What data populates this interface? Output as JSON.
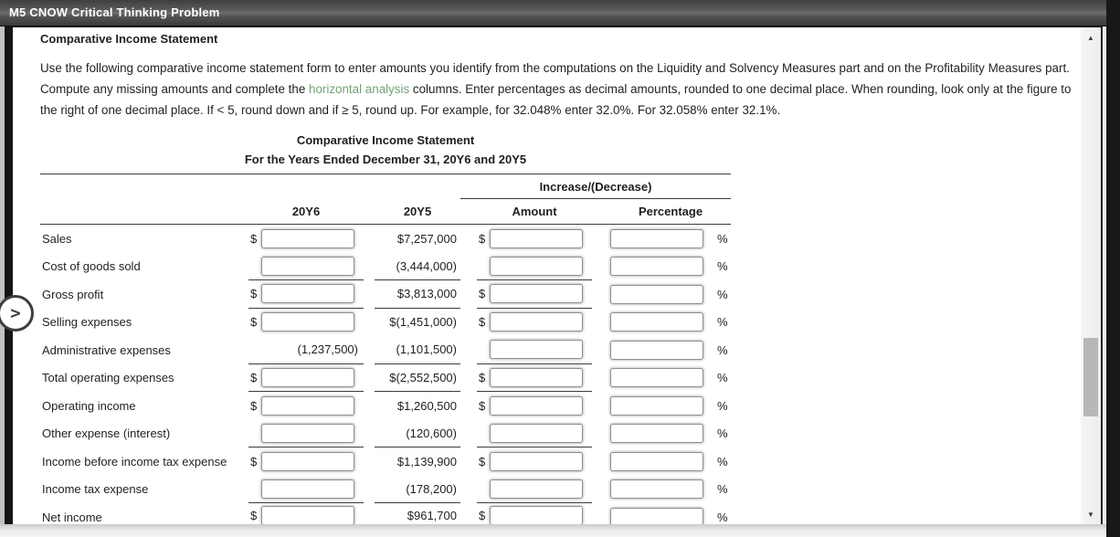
{
  "window": {
    "title": "M5 CNOW Critical Thinking Problem"
  },
  "panel": {
    "heading": "Comparative Income Statement",
    "instructions_before_link": "Use the following comparative income statement form to enter amounts you identify from the computations on the Liquidity and Solvency Measures part and on the Profitability Measures part. Compute any missing amounts and complete the ",
    "link_text": "horizontal analysis",
    "instructions_after_link": " columns. Enter percentages as decimal amounts, rounded to one decimal place. When rounding, look only at the figure to the right of one decimal place. If < 5, round down and if ≥ 5, round up. For example, for 32.048% enter 32.0%. For 32.058% enter 32.1%."
  },
  "statement": {
    "title_line1": "Comparative Income Statement",
    "title_line2": "For the Years Ended December 31, 20Y6 and 20Y5",
    "group_header": "Increase/(Decrease)",
    "columns": {
      "y6": "20Y6",
      "y5": "20Y5",
      "amount": "Amount",
      "percentage": "Percentage"
    },
    "rows": [
      {
        "label": "Sales",
        "y6_prefix": "$",
        "y5": "$7,257,000",
        "amt_prefix": "$",
        "pct_suffix": "%"
      },
      {
        "label": "Cost of goods sold",
        "y6_prefix": "",
        "y5": "(3,444,000)",
        "amt_prefix": "",
        "pct_suffix": "%"
      },
      {
        "label": "Gross profit",
        "y6_prefix": "$",
        "y5": "$3,813,000",
        "amt_prefix": "$",
        "pct_suffix": "%"
      },
      {
        "label": "Selling expenses",
        "y6_prefix": "$",
        "y5": "$(1,451,000)",
        "amt_prefix": "$",
        "pct_suffix": "%"
      },
      {
        "label": "Administrative expenses",
        "y6_text": "(1,237,500)",
        "y5": "(1,101,500)",
        "amt_prefix": "",
        "pct_suffix": "%"
      },
      {
        "label": "Total operating expenses",
        "y6_prefix": "$",
        "y5": "$(2,552,500)",
        "amt_prefix": "$",
        "pct_suffix": "%"
      },
      {
        "label": "Operating income",
        "y6_prefix": "$",
        "y5": "$1,260,500",
        "amt_prefix": "$",
        "pct_suffix": "%"
      },
      {
        "label": "Other expense (interest)",
        "y6_prefix": "",
        "y5": "(120,600)",
        "amt_prefix": "",
        "pct_suffix": "%"
      },
      {
        "label": "Income before income tax expense",
        "y6_prefix": "$",
        "y5": "$1,139,900",
        "amt_prefix": "$",
        "pct_suffix": "%"
      },
      {
        "label": "Income tax expense",
        "y6_prefix": "",
        "y5": "(178,200)",
        "amt_prefix": "",
        "pct_suffix": "%"
      },
      {
        "label": "Net income",
        "y6_prefix": "$",
        "y5": "$961,700",
        "amt_prefix": "$",
        "pct_suffix": "%"
      }
    ]
  },
  "icons": {
    "scroll_up": "▲",
    "scroll_down": "▼",
    "expand_chevron": ">"
  },
  "colors": {
    "link_green": "#74a276",
    "rule_dark": "#3b3b3b",
    "titlebar_text": "#ffffff"
  }
}
